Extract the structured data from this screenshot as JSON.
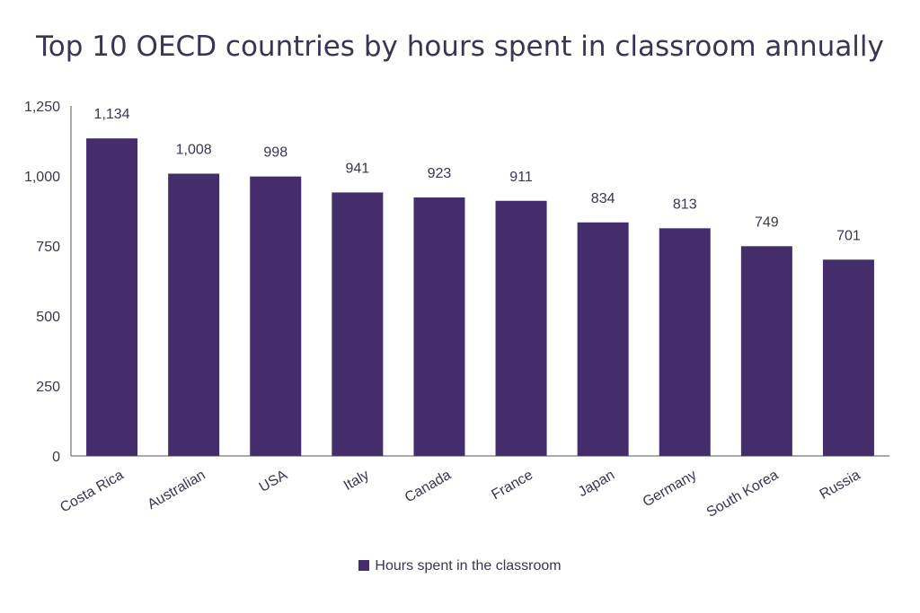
{
  "chart_data": {
    "type": "bar",
    "title": "Top 10 OECD countries by hours spent in classroom annually",
    "categories": [
      "Costa Rica",
      "Australian",
      "USA",
      "Italy",
      "Canada",
      "France",
      "Japan",
      "Germany",
      "South Korea",
      "Russia"
    ],
    "series": [
      {
        "name": "Hours spent in the classroom",
        "values": [
          1134,
          1008,
          998,
          941,
          923,
          911,
          834,
          813,
          749,
          701
        ],
        "labels": [
          "1,134",
          "1,008",
          "998",
          "941",
          "923",
          "911",
          "834",
          "813",
          "749",
          "701"
        ]
      }
    ],
    "yticks": [
      "0",
      "250",
      "500",
      "750",
      "1,000",
      "1,250"
    ],
    "ytick_values": [
      0,
      250,
      500,
      750,
      1000,
      1250
    ],
    "ylim": [
      0,
      1250
    ],
    "xlabel": "",
    "ylabel": "",
    "grid": false,
    "legend_position": "bottom",
    "bar_color": "#432e6b"
  }
}
